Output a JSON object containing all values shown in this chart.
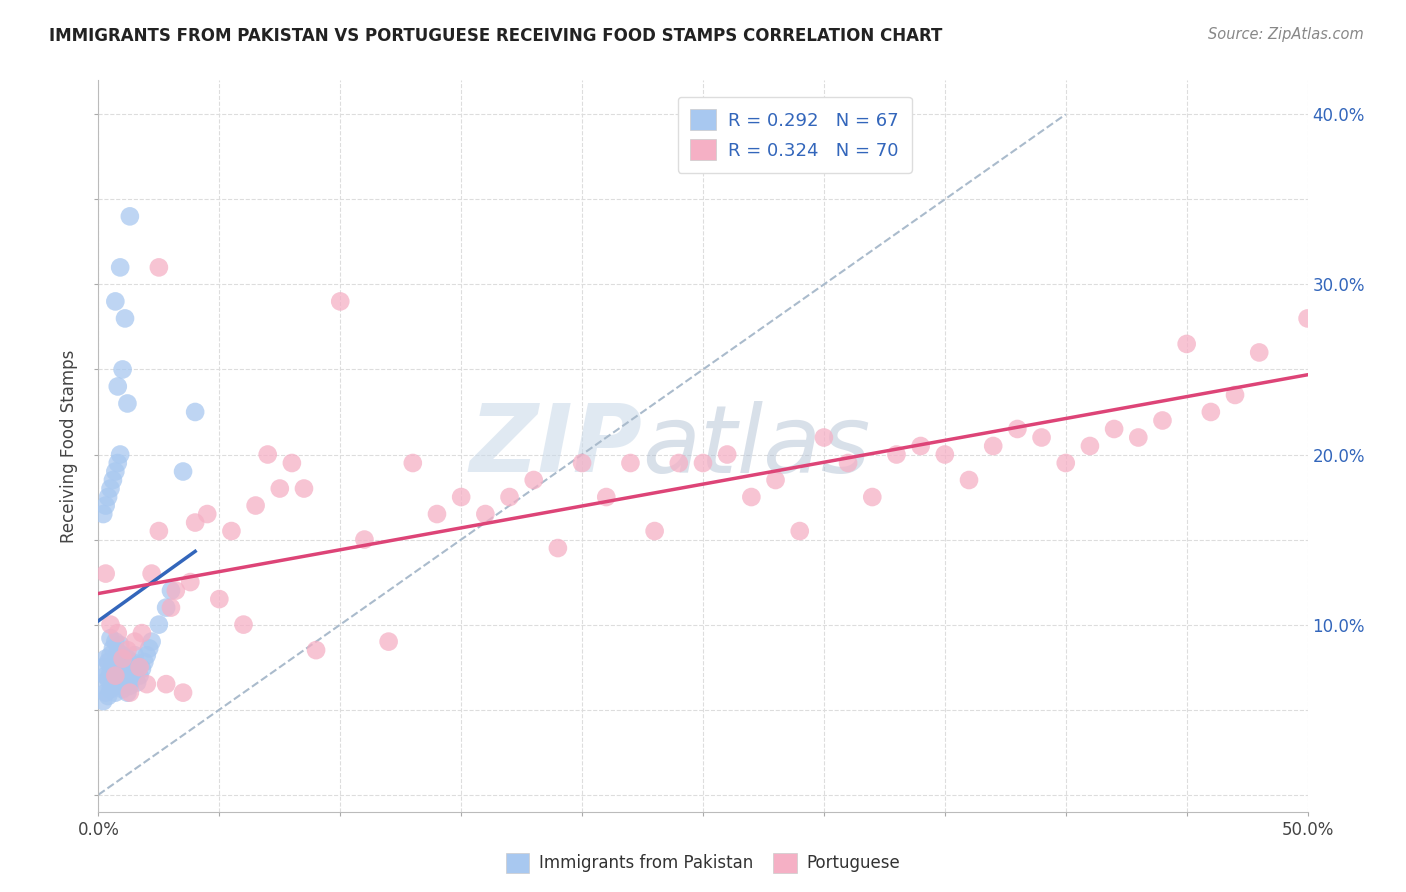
{
  "title": "IMMIGRANTS FROM PAKISTAN VS PORTUGUESE RECEIVING FOOD STAMPS CORRELATION CHART",
  "source": "Source: ZipAtlas.com",
  "ylabel": "Receiving Food Stamps",
  "xlim": [
    0.0,
    0.5
  ],
  "ylim": [
    -0.01,
    0.42
  ],
  "pakistan_color": "#a8c8f0",
  "portuguese_color": "#f5b0c5",
  "pakistan_R": 0.292,
  "pakistan_N": 67,
  "portuguese_R": 0.324,
  "portuguese_N": 70,
  "trend_pakistan_color": "#3366bb",
  "trend_portuguese_color": "#dd4477",
  "watermark_zip": "ZIP",
  "watermark_atlas": "atlas",
  "background_color": "#ffffff",
  "grid_color": "#dddddd",
  "pakistan_x": [
    0.001,
    0.002,
    0.002,
    0.003,
    0.003,
    0.003,
    0.004,
    0.004,
    0.004,
    0.005,
    0.005,
    0.005,
    0.005,
    0.006,
    0.006,
    0.006,
    0.007,
    0.007,
    0.007,
    0.008,
    0.008,
    0.008,
    0.009,
    0.009,
    0.009,
    0.01,
    0.01,
    0.01,
    0.011,
    0.011,
    0.012,
    0.012,
    0.012,
    0.013,
    0.013,
    0.014,
    0.014,
    0.015,
    0.015,
    0.016,
    0.016,
    0.017,
    0.018,
    0.019,
    0.02,
    0.021,
    0.022,
    0.025,
    0.028,
    0.03,
    0.002,
    0.003,
    0.004,
    0.005,
    0.006,
    0.007,
    0.008,
    0.009,
    0.035,
    0.04,
    0.008,
    0.01,
    0.012,
    0.007,
    0.009,
    0.011,
    0.013
  ],
  "pakistan_y": [
    0.065,
    0.055,
    0.075,
    0.06,
    0.07,
    0.08,
    0.058,
    0.068,
    0.078,
    0.062,
    0.072,
    0.082,
    0.092,
    0.066,
    0.076,
    0.086,
    0.06,
    0.07,
    0.09,
    0.064,
    0.074,
    0.084,
    0.068,
    0.078,
    0.088,
    0.062,
    0.072,
    0.082,
    0.066,
    0.076,
    0.06,
    0.07,
    0.08,
    0.064,
    0.074,
    0.068,
    0.078,
    0.072,
    0.082,
    0.066,
    0.076,
    0.07,
    0.074,
    0.078,
    0.082,
    0.086,
    0.09,
    0.1,
    0.11,
    0.12,
    0.165,
    0.17,
    0.175,
    0.18,
    0.185,
    0.19,
    0.195,
    0.2,
    0.19,
    0.225,
    0.24,
    0.25,
    0.23,
    0.29,
    0.31,
    0.28,
    0.34
  ],
  "portuguese_x": [
    0.003,
    0.005,
    0.007,
    0.008,
    0.01,
    0.012,
    0.013,
    0.015,
    0.017,
    0.018,
    0.02,
    0.022,
    0.025,
    0.028,
    0.03,
    0.032,
    0.035,
    0.038,
    0.04,
    0.045,
    0.05,
    0.055,
    0.06,
    0.065,
    0.07,
    0.075,
    0.08,
    0.085,
    0.09,
    0.1,
    0.11,
    0.12,
    0.13,
    0.14,
    0.15,
    0.16,
    0.17,
    0.18,
    0.19,
    0.2,
    0.21,
    0.22,
    0.23,
    0.24,
    0.25,
    0.26,
    0.27,
    0.28,
    0.29,
    0.3,
    0.31,
    0.32,
    0.33,
    0.34,
    0.35,
    0.36,
    0.37,
    0.38,
    0.39,
    0.4,
    0.41,
    0.42,
    0.43,
    0.44,
    0.45,
    0.46,
    0.47,
    0.48,
    0.5,
    0.025
  ],
  "portuguese_y": [
    0.13,
    0.1,
    0.07,
    0.095,
    0.08,
    0.085,
    0.06,
    0.09,
    0.075,
    0.095,
    0.065,
    0.13,
    0.155,
    0.065,
    0.11,
    0.12,
    0.06,
    0.125,
    0.16,
    0.165,
    0.115,
    0.155,
    0.1,
    0.17,
    0.2,
    0.18,
    0.195,
    0.18,
    0.085,
    0.29,
    0.15,
    0.09,
    0.195,
    0.165,
    0.175,
    0.165,
    0.175,
    0.185,
    0.145,
    0.195,
    0.175,
    0.195,
    0.155,
    0.195,
    0.195,
    0.2,
    0.175,
    0.185,
    0.155,
    0.21,
    0.195,
    0.175,
    0.2,
    0.205,
    0.2,
    0.185,
    0.205,
    0.215,
    0.21,
    0.195,
    0.205,
    0.215,
    0.21,
    0.22,
    0.265,
    0.225,
    0.235,
    0.26,
    0.28,
    0.31
  ]
}
